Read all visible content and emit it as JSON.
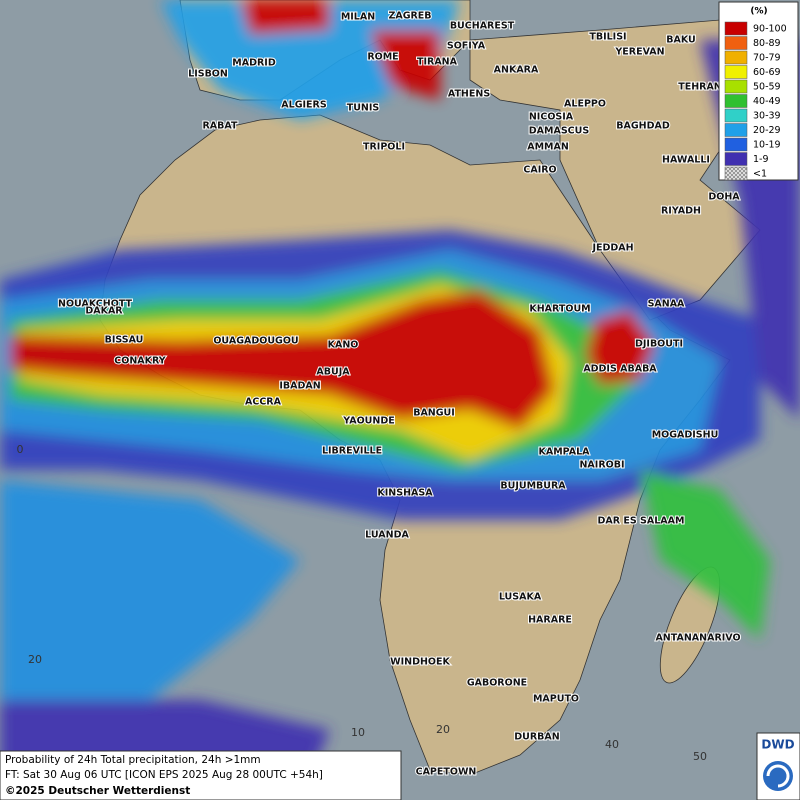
{
  "legend": {
    "unit": "(%)",
    "items": [
      {
        "label": "90-100",
        "color": "#c80000"
      },
      {
        "label": "80-89",
        "color": "#f06010"
      },
      {
        "label": "70-79",
        "color": "#f0b000"
      },
      {
        "label": "60-69",
        "color": "#f0f000"
      },
      {
        "label": "50-59",
        "color": "#a8e000"
      },
      {
        "label": "40-49",
        "color": "#30c030"
      },
      {
        "label": "30-39",
        "color": "#30d0c8"
      },
      {
        "label": "20-29",
        "color": "#20a0e8"
      },
      {
        "label": "10-19",
        "color": "#2060e0"
      },
      {
        "label": "1-9",
        "color": "#4030b0"
      },
      {
        "label": "<1",
        "color": "#b8b8b8"
      }
    ]
  },
  "cities": [
    "MILAN",
    "ZAGREB",
    "BUCHAREST",
    "SOFIYA",
    "TBILISI",
    "BAKU",
    "YEREVAN",
    "MADRID",
    "ROME",
    "TIRANA",
    "ANKARA",
    "LISBON",
    "TEHRAN",
    "ALGIERS",
    "TUNIS",
    "ATHENS",
    "ALEPPO",
    "RABAT",
    "NICOSIA",
    "BAGHDAD",
    "DAMASCUS",
    "TRIPOLI",
    "AMMAN",
    "CAIRO",
    "HAWALLI",
    "DOHA",
    "RIYADH",
    "JEDDAH",
    "NOUAKCHOTT",
    "SANAA",
    "DAKAR",
    "KHARTOUM",
    "BISSAU",
    "DJIBOUTI",
    "OUAGADOUGOU",
    "KANO",
    "CONAKRY",
    "ADDIS ABABA",
    "ABUJA",
    "IBADAN",
    "ACCRA",
    "BANGUI",
    "YAOUNDE",
    "MOGADISHU",
    "LIBREVILLE",
    "KAMPALA",
    "NAIROBI",
    "BUJUMBURA",
    "KINSHASA",
    "DAR ES SALAAM",
    "LUANDA",
    "LUSAKA",
    "HARARE",
    "ANTANANARIVO",
    "WINDHOEK",
    "GABORONE",
    "MAPUTO",
    "DURBAN",
    "CAPETOWN"
  ],
  "grid_labels": [
    "10",
    "20",
    "40",
    "50",
    "0",
    "20"
  ],
  "footer": {
    "line1": "Probability of 24h Total precipitation, 24h >1mm",
    "line2": "FT: Sat 30 Aug 06 UTC [ICON EPS 2025 Aug 28 00UTC +54h]",
    "line3": "©2025 Deutscher Wetterdienst"
  },
  "logo": "DWD"
}
